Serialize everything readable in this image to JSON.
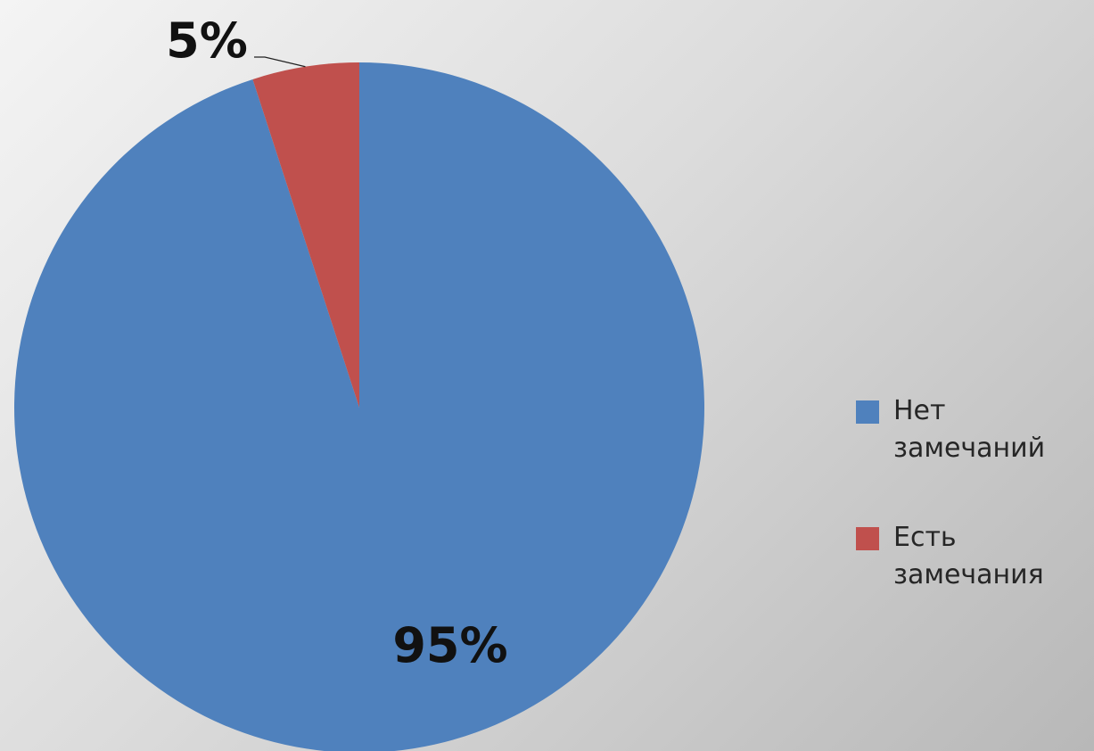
{
  "chart_data": {
    "type": "pie",
    "title": "",
    "slices": [
      {
        "name": "Нет замечаний",
        "value": 95,
        "label": "95%",
        "color": "#4F81BD"
      },
      {
        "name": "Есть замечания",
        "value": 5,
        "label": "5%",
        "color": "#C0504D"
      }
    ],
    "start_angle": "12 o'clock",
    "direction": "clockwise",
    "legend_position": "right"
  },
  "legend": {
    "items": [
      {
        "label": "Нет замечаний",
        "color": "#4F81BD"
      },
      {
        "label": "Есть замечания",
        "color": "#C0504D"
      }
    ]
  }
}
